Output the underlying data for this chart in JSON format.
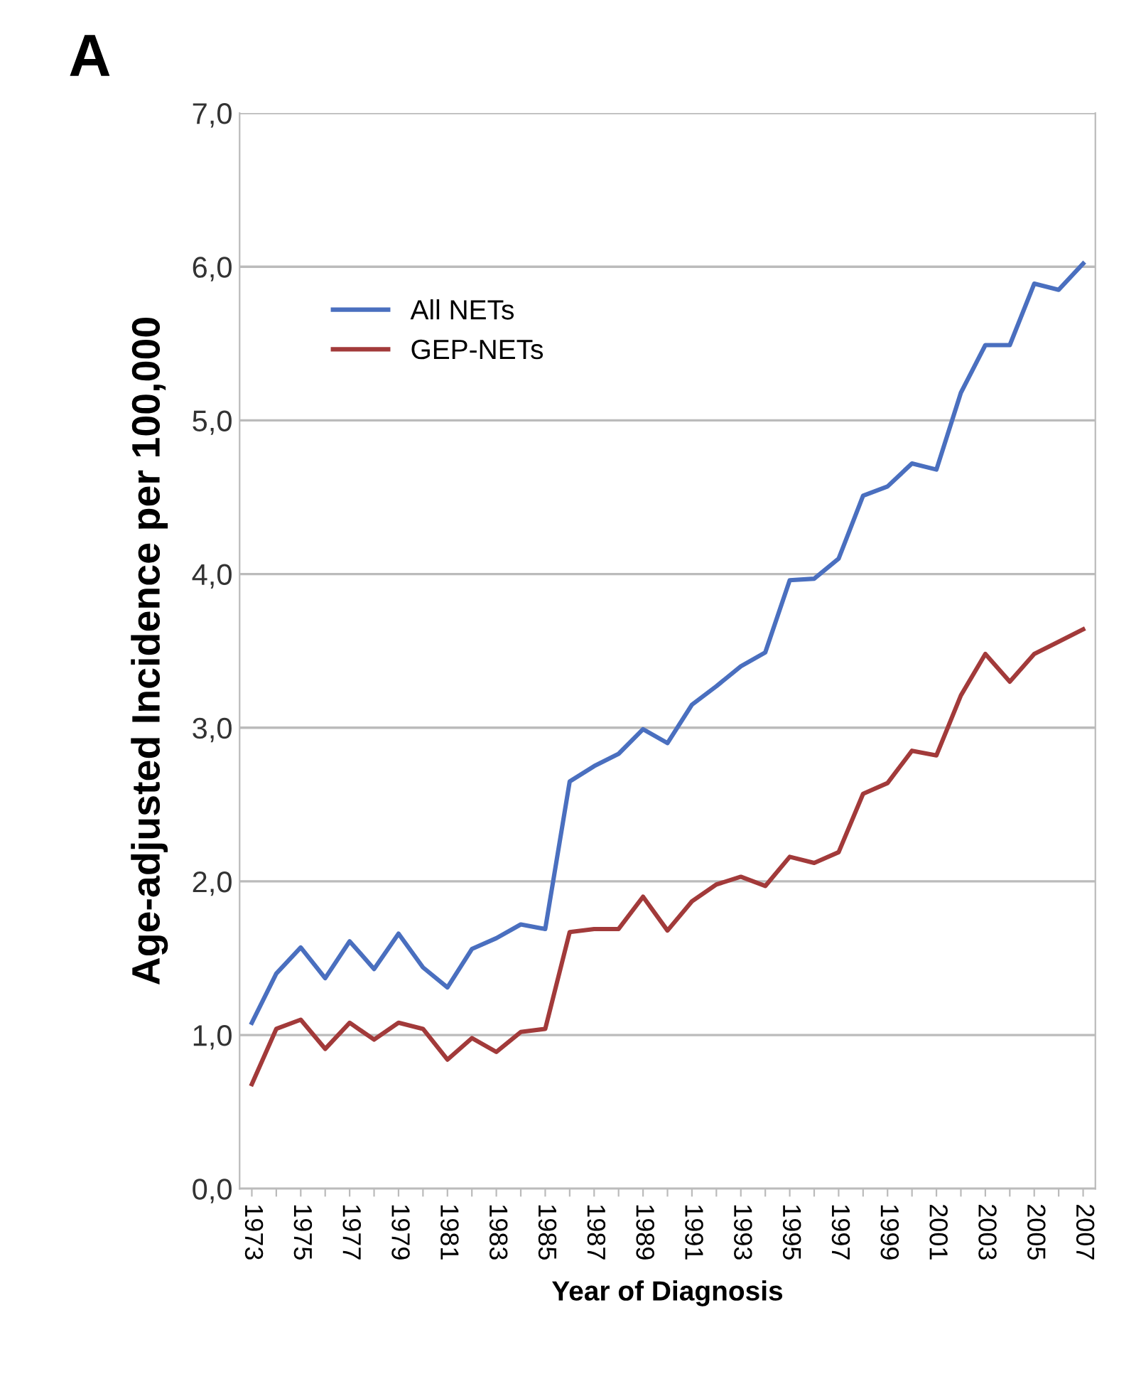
{
  "chart_data": {
    "type": "line",
    "xlabel": "Year of Diagnosis",
    "ylabel": "Age-adjusted Incidence per 100,000",
    "annotations": [
      "A"
    ],
    "categories": [
      "1973",
      null,
      "1975",
      null,
      "1977",
      null,
      "1979",
      null,
      "1981",
      null,
      "1983",
      null,
      "1985",
      null,
      "1987",
      null,
      "1989",
      null,
      "1991",
      null,
      "1993",
      null,
      "1995",
      null,
      "1997",
      null,
      "1999",
      null,
      "2001",
      null,
      "2003",
      null,
      "2005",
      null,
      "2007"
    ],
    "series": [
      {
        "name": "All NETs",
        "color": "#4a6fbf",
        "values": [
          1.08,
          1.4,
          1.57,
          1.37,
          1.61,
          1.43,
          1.66,
          1.44,
          1.31,
          1.56,
          1.63,
          1.72,
          1.69,
          2.65,
          2.75,
          2.83,
          2.99,
          2.9,
          3.15,
          3.27,
          3.4,
          3.49,
          3.96,
          3.97,
          4.1,
          4.51,
          4.57,
          4.72,
          4.68,
          5.18,
          5.49,
          5.49,
          5.89,
          5.85,
          6.02
        ]
      },
      {
        "name": "GEP-NETs",
        "color": "#a23a3a",
        "values": [
          0.68,
          1.04,
          1.1,
          0.91,
          1.08,
          0.97,
          1.08,
          1.04,
          0.84,
          0.98,
          0.89,
          1.02,
          1.04,
          1.67,
          1.69,
          1.69,
          1.9,
          1.68,
          1.87,
          1.98,
          2.03,
          1.97,
          2.16,
          2.12,
          2.19,
          2.57,
          2.64,
          2.85,
          2.82,
          3.21,
          3.48,
          3.3,
          3.48,
          3.56,
          3.64
        ]
      }
    ],
    "ylim": [
      0,
      7
    ],
    "yticks": [
      {
        "value": 0,
        "label": "0,0"
      },
      {
        "value": 1,
        "label": "1,0"
      },
      {
        "value": 2,
        "label": "2,0"
      },
      {
        "value": 3,
        "label": "3,0"
      },
      {
        "value": 4,
        "label": "4,0"
      },
      {
        "value": 5,
        "label": "5,0"
      },
      {
        "value": 6,
        "label": "6,0"
      },
      {
        "value": 7,
        "label": "7,0"
      }
    ],
    "grid": "y",
    "legend": "top left",
    "marker": "none",
    "line_style": "solid"
  }
}
